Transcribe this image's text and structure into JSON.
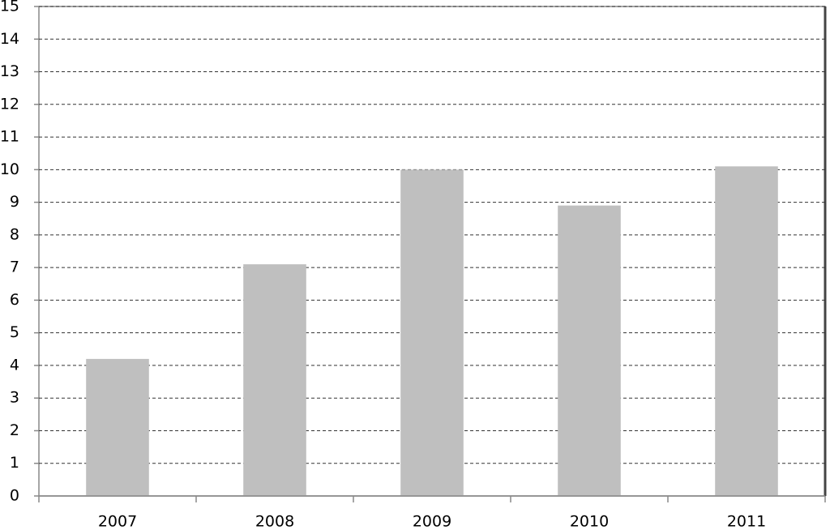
{
  "chart_data": {
    "type": "bar",
    "categories": [
      "2007",
      "2008",
      "2009",
      "2010",
      "2011"
    ],
    "values": [
      4.2,
      7.1,
      10.0,
      8.9,
      10.1
    ],
    "color": "#bfbfbf",
    "ylim": [
      0,
      15
    ],
    "yticks": [
      0,
      1,
      2,
      3,
      4,
      5,
      6,
      7,
      8,
      9,
      10,
      11,
      12,
      13,
      14,
      15
    ],
    "grid": true
  }
}
